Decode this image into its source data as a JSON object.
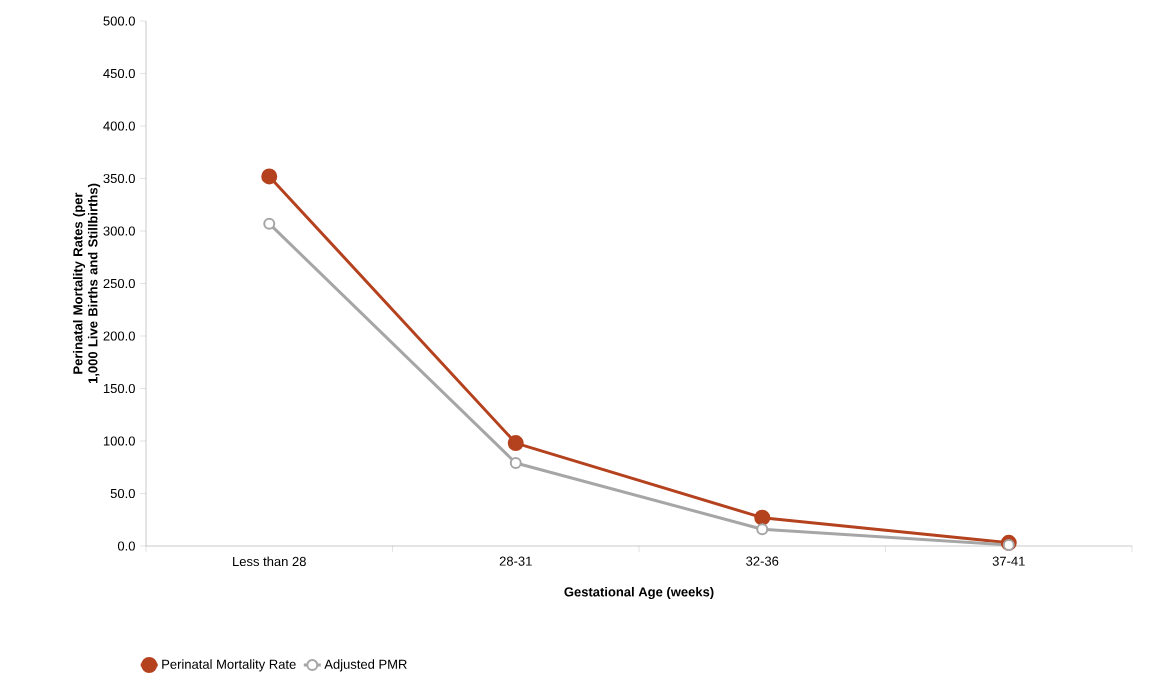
{
  "chart_data": {
    "type": "line",
    "xlabel": "Gestational Age (weeks)",
    "ylabel": "Perinatal Mortality Rates (per 1,000 Live Births and Stillbirths)",
    "categories": [
      "Less than 28",
      "28-31",
      "32-36",
      "37-41"
    ],
    "series": [
      {
        "name": "Perinatal Mortality Rate",
        "color": "#b5421e",
        "values": [
          352,
          98,
          27,
          3
        ]
      },
      {
        "name": "Adjusted PMR",
        "color": "#a6a6a6",
        "values": [
          307,
          79,
          16,
          1
        ]
      }
    ],
    "ylim": [
      0,
      500
    ],
    "yticks": [
      {
        "value": 0,
        "label": "0.0"
      },
      {
        "value": 50,
        "label": "50.0"
      },
      {
        "value": 100,
        "label": "100.0"
      },
      {
        "value": 150,
        "label": "150.0"
      },
      {
        "value": 200,
        "label": "200.0"
      },
      {
        "value": 250,
        "label": "250.0"
      },
      {
        "value": 300,
        "label": "300.0"
      },
      {
        "value": 350,
        "label": "350.0"
      },
      {
        "value": 400,
        "label": "400.0"
      },
      {
        "value": 450,
        "label": "450.0"
      },
      {
        "value": 500,
        "label": "500.0"
      }
    ],
    "grid": false,
    "legend": "bottom left",
    "marker": "circle",
    "line_style": "solid"
  }
}
